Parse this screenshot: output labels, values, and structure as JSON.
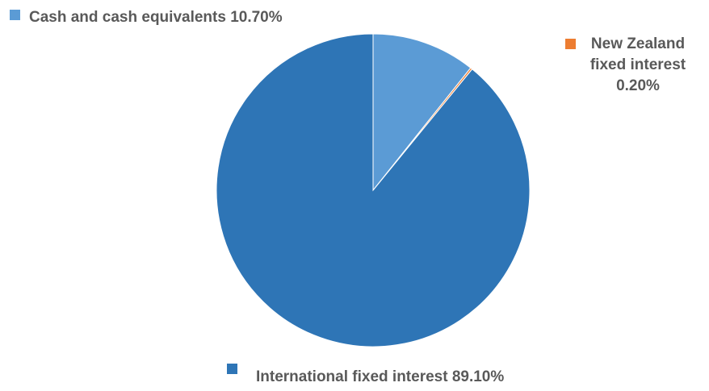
{
  "chart_data": {
    "type": "pie",
    "title": "",
    "start_angle_deg": 0,
    "direction": "clockwise",
    "slices": [
      {
        "label": "Cash and cash equivalents",
        "value": 10.7,
        "display": "10.70%",
        "color": "#5b9bd5"
      },
      {
        "label": "New Zealand fixed interest",
        "value": 0.2,
        "display": "0.20%",
        "color": "#ed7d31"
      },
      {
        "label": "International fixed interest",
        "value": 89.1,
        "display": "89.10%",
        "color": "#2e75b6"
      }
    ]
  },
  "labels": {
    "cash": "Cash and cash equivalents 10.70%",
    "nz_line1": "New Zealand",
    "nz_line2": "fixed interest",
    "nz_line3": "0.20%",
    "intl": "International fixed interest 89.10%"
  }
}
